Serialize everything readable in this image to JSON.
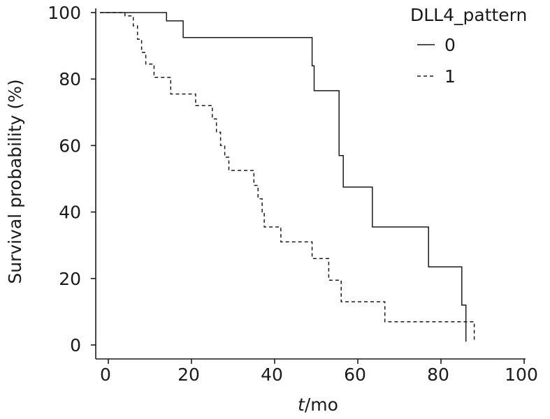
{
  "chart_data": {
    "type": "line",
    "subtype": "step",
    "xlabel_italic": "t",
    "xlabel_rest": "/mo",
    "ylabel": "Survival probability (%)",
    "xlim": [
      0,
      100
    ],
    "ylim": [
      0,
      100
    ],
    "xticks": [
      "0",
      "20",
      "40",
      "60",
      "80",
      "100"
    ],
    "yticks": [
      "0",
      "20",
      "40",
      "60",
      "80",
      "100"
    ],
    "grid": false,
    "legend": {
      "title": "DLL4_pattern",
      "placement": "top-right"
    },
    "series": [
      {
        "name": "0",
        "style": "solid",
        "points": [
          [
            -2,
            100
          ],
          [
            14,
            100
          ],
          [
            14,
            97.5
          ],
          [
            18,
            97.5
          ],
          [
            18,
            92.5
          ],
          [
            49,
            92.5
          ],
          [
            49,
            84
          ],
          [
            49.5,
            84
          ],
          [
            49.5,
            76.5
          ],
          [
            55.5,
            76.5
          ],
          [
            55.5,
            57
          ],
          [
            56.5,
            57
          ],
          [
            56.5,
            47.5
          ],
          [
            63.5,
            47.5
          ],
          [
            63.5,
            35.5
          ],
          [
            77,
            35.5
          ],
          [
            77,
            23.5
          ],
          [
            85,
            23.5
          ],
          [
            85,
            12
          ],
          [
            86,
            12
          ],
          [
            86,
            1
          ]
        ]
      },
      {
        "name": "1",
        "style": "dashed",
        "points": [
          [
            -2,
            100
          ],
          [
            4,
            100
          ],
          [
            4,
            99
          ],
          [
            6,
            99
          ],
          [
            6,
            96
          ],
          [
            7,
            96
          ],
          [
            7,
            92
          ],
          [
            8,
            92
          ],
          [
            8,
            88
          ],
          [
            9,
            88
          ],
          [
            9,
            84.5
          ],
          [
            11,
            84.5
          ],
          [
            11,
            80.5
          ],
          [
            15,
            80.5
          ],
          [
            15,
            75.5
          ],
          [
            21,
            75.5
          ],
          [
            21,
            72
          ],
          [
            25,
            72
          ],
          [
            25,
            68
          ],
          [
            26,
            68
          ],
          [
            26,
            64
          ],
          [
            27,
            64
          ],
          [
            27,
            60
          ],
          [
            28,
            60
          ],
          [
            28,
            56.5
          ],
          [
            29,
            56.5
          ],
          [
            29,
            52.5
          ],
          [
            35,
            52.5
          ],
          [
            35,
            48
          ],
          [
            36,
            48
          ],
          [
            36,
            44
          ],
          [
            37,
            44
          ],
          [
            37,
            40
          ],
          [
            37.5,
            40
          ],
          [
            37.5,
            35.5
          ],
          [
            41.5,
            35.5
          ],
          [
            41.5,
            31
          ],
          [
            49,
            31
          ],
          [
            49,
            26
          ],
          [
            53,
            26
          ],
          [
            53,
            19.5
          ],
          [
            56,
            19.5
          ],
          [
            56,
            13
          ],
          [
            66.5,
            13
          ],
          [
            66.5,
            7
          ],
          [
            88,
            7
          ],
          [
            88,
            1
          ]
        ]
      }
    ]
  }
}
